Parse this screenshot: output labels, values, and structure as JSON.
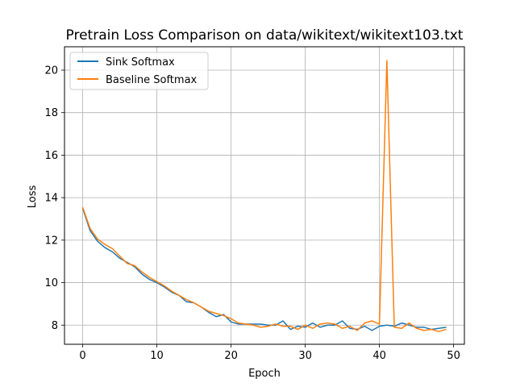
{
  "chart_data": {
    "type": "line",
    "title": "Pretrain Loss Comparison on data/wikitext/wikitext103.txt",
    "xlabel": "Epoch",
    "ylabel": "Loss",
    "xlim": [
      -2.45,
      51.45
    ],
    "ylim": [
      7.1,
      21.1
    ],
    "xticks": [
      0,
      10,
      20,
      30,
      40,
      50
    ],
    "yticks": [
      8,
      10,
      12,
      14,
      16,
      18,
      20
    ],
    "grid": true,
    "legend_position": "top-left",
    "series": [
      {
        "name": "Sink Softmax",
        "color": "#1f77b4",
        "x": [
          0,
          1,
          2,
          3,
          4,
          5,
          6,
          7,
          8,
          9,
          10,
          11,
          12,
          13,
          14,
          15,
          16,
          17,
          18,
          19,
          20,
          21,
          22,
          23,
          24,
          25,
          26,
          27,
          28,
          29,
          30,
          31,
          32,
          33,
          34,
          35,
          36,
          37,
          38,
          39,
          40,
          41,
          42,
          43,
          44,
          45,
          46,
          47,
          48,
          49
        ],
        "y": [
          13.5,
          12.45,
          11.95,
          11.65,
          11.45,
          11.15,
          10.95,
          10.75,
          10.4,
          10.15,
          10.0,
          9.8,
          9.55,
          9.4,
          9.1,
          9.05,
          8.85,
          8.6,
          8.4,
          8.5,
          8.15,
          8.05,
          8.05,
          8.05,
          8.05,
          8.0,
          8.0,
          8.2,
          7.8,
          7.95,
          7.9,
          8.1,
          7.9,
          8.0,
          8.0,
          8.2,
          7.85,
          7.8,
          7.95,
          7.75,
          7.95,
          8.0,
          7.95,
          8.1,
          8.0,
          7.9,
          7.9,
          7.8,
          7.85,
          7.9
        ]
      },
      {
        "name": "Baseline Softmax",
        "color": "#ff7f0e",
        "x": [
          0,
          1,
          2,
          3,
          4,
          5,
          6,
          7,
          8,
          9,
          10,
          11,
          12,
          13,
          14,
          15,
          16,
          17,
          18,
          19,
          20,
          21,
          22,
          23,
          24,
          25,
          26,
          27,
          28,
          29,
          30,
          31,
          32,
          33,
          34,
          35,
          36,
          37,
          38,
          39,
          40,
          41,
          42,
          43,
          44,
          45,
          46,
          47,
          48,
          49
        ],
        "y": [
          13.55,
          12.55,
          12.05,
          11.8,
          11.6,
          11.25,
          10.9,
          10.8,
          10.5,
          10.25,
          10.05,
          9.85,
          9.6,
          9.4,
          9.2,
          9.05,
          8.85,
          8.65,
          8.55,
          8.45,
          8.3,
          8.1,
          8.05,
          8.0,
          7.9,
          7.95,
          8.05,
          7.95,
          7.95,
          7.8,
          8.0,
          7.85,
          8.05,
          8.1,
          8.05,
          7.85,
          7.95,
          7.75,
          8.1,
          8.2,
          8.05,
          20.45,
          7.9,
          7.85,
          8.1,
          7.85,
          7.75,
          7.8,
          7.7,
          7.8
        ]
      }
    ]
  }
}
